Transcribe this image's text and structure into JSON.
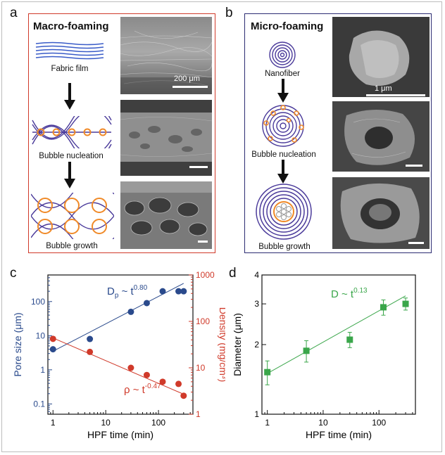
{
  "panels": {
    "a": {
      "label": "a",
      "title": "Macro-foaming",
      "captions": [
        "Fabric film",
        "Bubble nucleation",
        "Bubble growth"
      ],
      "scale_text": "200 μm"
    },
    "b": {
      "label": "b",
      "title": "Micro-foaming",
      "captions": [
        "Nanofiber",
        "Bubble nucleation",
        "Bubble growth"
      ],
      "scale_text": "1 μm"
    },
    "c": {
      "label": "c"
    },
    "d": {
      "label": "d"
    }
  },
  "colors": {
    "blue": "#2a4a8c",
    "red": "#d03a2a",
    "green": "#3aa64a",
    "purple": "#4a3a9a",
    "orange": "#f08a28"
  },
  "chart_data": [
    {
      "id": "c",
      "type": "scatter",
      "xscale": "log",
      "xlim": [
        0.8,
        450
      ],
      "xlabel": "HPF time (min)",
      "xticks": [
        1,
        10,
        100
      ],
      "xtick_labels": [
        "1",
        "10",
        "100"
      ],
      "ylabel": "Pore size (μm)",
      "yscale": "log",
      "ylim": [
        0.05,
        600
      ],
      "yticks": [
        0.1,
        1,
        10,
        100
      ],
      "ytick_labels": [
        "0.1",
        "1",
        "10",
        "100"
      ],
      "y2label": "Density (mg/cm³)",
      "y2scale": "log",
      "y2lim": [
        1,
        1000
      ],
      "y2ticks": [
        1,
        10,
        100,
        1000
      ],
      "y2tick_labels": [
        "1",
        "10",
        "100",
        "1000"
      ],
      "series": [
        {
          "name": "Pore size",
          "axis": "left",
          "color": "#2a4a8c",
          "x": [
            1,
            5,
            30,
            60,
            120,
            240,
            300
          ],
          "y": [
            4,
            8,
            50,
            90,
            200,
            200,
            200
          ],
          "fit": {
            "x": [
              1,
              300
            ],
            "y": [
              3.5,
              340
            ]
          },
          "annotation": {
            "text": "D",
            "sub": "p",
            "rest": " ~ t",
            "sup": "0.80"
          }
        },
        {
          "name": "Density",
          "axis": "right",
          "color": "#d03a2a",
          "x": [
            1,
            5,
            30,
            60,
            120,
            240,
            300
          ],
          "y": [
            42,
            22,
            10,
            7,
            5,
            4.5,
            2.5
          ],
          "fit": {
            "x": [
              1,
              300
            ],
            "y": [
              44,
              2.7
            ]
          },
          "annotation": {
            "text": "ρ ~ t",
            "sup": "-0.47"
          }
        }
      ]
    },
    {
      "id": "d",
      "type": "scatter",
      "xscale": "log",
      "xlim": [
        0.8,
        450
      ],
      "xlabel": "HPF time (min)",
      "xticks": [
        1,
        10,
        100
      ],
      "xtick_labels": [
        "1",
        "10",
        "100"
      ],
      "ylabel": "Diameter (μm)",
      "yscale": "log",
      "ylim": [
        1,
        4
      ],
      "yticks": [
        1,
        2,
        3,
        4
      ],
      "ytick_labels": [
        "1",
        "2",
        "3",
        "4"
      ],
      "series": [
        {
          "name": "Diameter",
          "color": "#3aa64a",
          "x": [
            1,
            5,
            30,
            120,
            300
          ],
          "y": [
            1.52,
            1.88,
            2.1,
            2.9,
            3.0
          ],
          "err": [
            0.18,
            0.2,
            0.16,
            0.22,
            0.18
          ],
          "fit": {
            "x": [
              1,
              300
            ],
            "y": [
              1.5,
              3.25
            ]
          },
          "annotation": {
            "text": "D ~ t",
            "sup": "0.13"
          }
        }
      ]
    }
  ]
}
